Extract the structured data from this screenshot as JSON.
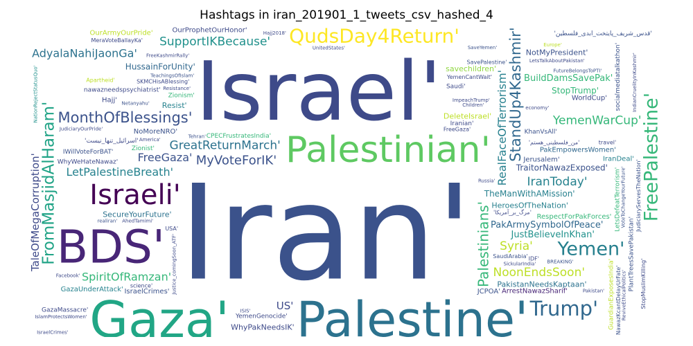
{
  "chart_data": {
    "type": "wordcloud",
    "title": "Hashtags in iran_201901_1_tweets_csv_hashed_4",
    "colormap": "viridis",
    "background": "#ffffff",
    "words": [
      {
        "text": "Israel'",
        "weight": 100,
        "color": "#3e4a89",
        "orient": "h"
      },
      {
        "text": "Iran'",
        "weight": 98,
        "color": "#3b528b",
        "orient": "h"
      },
      {
        "text": "Palestine'",
        "weight": 62,
        "color": "#2c728e",
        "orient": "h"
      },
      {
        "text": "Gaza'",
        "weight": 60,
        "color": "#21a685",
        "orient": "h"
      },
      {
        "text": "BDS'",
        "weight": 52,
        "color": "#482677",
        "orient": "h"
      },
      {
        "text": "Palestinian'",
        "weight": 45,
        "color": "#5ec962",
        "orient": "h"
      },
      {
        "text": "Israeli'",
        "weight": 33,
        "color": "#440154",
        "orient": "h"
      },
      {
        "text": "QudsDay4Return'",
        "weight": 28,
        "color": "#fde725",
        "orient": "h"
      },
      {
        "text": "FreePalestine'",
        "weight": 27,
        "color": "#35b779",
        "orient": "v"
      },
      {
        "text": "Trump'",
        "weight": 24,
        "color": "#31688e",
        "orient": "h"
      },
      {
        "text": "Yemen'",
        "weight": 22,
        "color": "#27808e",
        "orient": "h"
      },
      {
        "text": "FromMasjidAlHaram'",
        "weight": 18,
        "color": "#20a386",
        "orient": "v"
      },
      {
        "text": "MonthOfBlessings'",
        "weight": 16,
        "color": "#3b528b",
        "orient": "h"
      },
      {
        "text": "StandUp4Kashmir'",
        "weight": 16,
        "color": "#31688e",
        "orient": "v"
      },
      {
        "text": "Palestinians'",
        "weight": 15,
        "color": "#35b779",
        "orient": "v"
      },
      {
        "text": "GreatReturnMarch'",
        "weight": 12,
        "color": "#2c728e",
        "orient": "h"
      },
      {
        "text": "SupportIKBecause'",
        "weight": 12,
        "color": "#21918c",
        "orient": "h"
      },
      {
        "text": "NoonEndsSoon'",
        "weight": 12,
        "color": "#bddf26",
        "orient": "h"
      },
      {
        "text": "MyVoteForIK'",
        "weight": 13,
        "color": "#3b528b",
        "orient": "h"
      },
      {
        "text": "AdyalaNahiJaonGa'",
        "weight": 11,
        "color": "#2c728e",
        "orient": "h"
      },
      {
        "text": "SpiritOfRamzan'",
        "weight": 11,
        "color": "#35b779",
        "orient": "h"
      },
      {
        "text": "LetPalestineBreath'",
        "weight": 11,
        "color": "#26828e",
        "orient": "h"
      },
      {
        "text": "Syria'",
        "weight": 12,
        "color": "#bddf26",
        "orient": "h"
      },
      {
        "text": "IranToday'",
        "weight": 12,
        "color": "#26828e",
        "orient": "h"
      },
      {
        "text": "YemenWarCup'",
        "weight": 12,
        "color": "#35b779",
        "orient": "h"
      },
      {
        "text": "FreeGaza'",
        "weight": 11,
        "color": "#3b528b",
        "orient": "h"
      },
      {
        "text": "RealFaceOfTerrorism'",
        "weight": 11,
        "color": "#27808e",
        "orient": "v"
      },
      {
        "text": "TaleOfMegaCorruption'",
        "weight": 10,
        "color": "#3e4a89",
        "orient": "v"
      },
      {
        "text": "PakArmySymbolOfPeace'",
        "weight": 9,
        "color": "#31688e",
        "orient": "h"
      },
      {
        "text": "BuildDamsSavePak'",
        "weight": 9,
        "color": "#35b779",
        "orient": "h"
      },
      {
        "text": "US'",
        "weight": 10,
        "color": "#3e4a89",
        "orient": "h"
      },
      {
        "text": "JustBelieveInKhan'",
        "weight": 9,
        "color": "#21918c",
        "orient": "h"
      },
      {
        "text": "TheManWithAMission'",
        "weight": 8,
        "color": "#27808e",
        "orient": "h"
      },
      {
        "text": "TraitorNawazExposed'",
        "weight": 8,
        "color": "#3b528b",
        "orient": "h"
      },
      {
        "text": "StopTrump'",
        "weight": 8,
        "color": "#35b779",
        "orient": "h"
      },
      {
        "text": "HussainForUnity'",
        "weight": 8,
        "color": "#31688e",
        "orient": "h"
      },
      {
        "text": "WhyPakNeedsIK'",
        "weight": 7,
        "color": "#3e4a89",
        "orient": "h"
      },
      {
        "text": "SecureYourFuture'",
        "weight": 7,
        "color": "#2c728e",
        "orient": "h"
      },
      {
        "text": "Resist'",
        "weight": 7,
        "color": "#26828e",
        "orient": "h"
      },
      {
        "text": "savechildren'",
        "weight": 7,
        "color": "#90d743",
        "orient": "h"
      },
      {
        "text": "ArrestNawazSharif'",
        "weight": 6,
        "color": "#482677",
        "orient": "h"
      },
      {
        "text": "PakistanNeedsKaptaan'",
        "weight": 7,
        "color": "#2c728e",
        "orient": "h"
      },
      {
        "text": "HeroesOfTheNation'",
        "weight": 7,
        "color": "#27808e",
        "orient": "h"
      },
      {
        "text": "RespectForPakForces'",
        "weight": 6,
        "color": "#35b779",
        "orient": "h"
      },
      {
        "text": "IranDeal'",
        "weight": 6,
        "color": "#26828e",
        "orient": "h"
      },
      {
        "text": "Hajj'",
        "weight": 6,
        "color": "#3e4a89",
        "orient": "h"
      },
      {
        "text": "IsraelCrimes'",
        "weight": 6,
        "color": "#3b528b",
        "orient": "h"
      },
      {
        "text": "GazaUnderAttack'",
        "weight": 6,
        "color": "#26828e",
        "orient": "h"
      },
      {
        "text": "NoMoreNRO'",
        "weight": 6,
        "color": "#3b528b",
        "orient": "h"
      },
      {
        "text": "OurProphetOurHonor'",
        "weight": 6,
        "color": "#3e4a89",
        "orient": "h"
      },
      {
        "text": "DeleteIsrael'",
        "weight": 7,
        "color": "#bddf26",
        "orient": "h"
      },
      {
        "text": "NotMyPresident'",
        "weight": 7,
        "color": "#3b528b",
        "orient": "h"
      },
      {
        "text": "OurArmyOurPride'",
        "weight": 6,
        "color": "#bddf26",
        "orient": "h"
      },
      {
        "text": "JCPOA'",
        "weight": 6,
        "color": "#3b528b",
        "orient": "h"
      },
      {
        "text": "PakEmpowersWomen'",
        "weight": 6,
        "color": "#31688e",
        "orient": "h"
      },
      {
        "text": "Jerusalem'",
        "weight": 6,
        "color": "#3b528b",
        "orient": "h"
      },
      {
        "text": "GazaMassacre'",
        "weight": 5,
        "color": "#3e4a89",
        "orient": "h"
      },
      {
        "text": "WhyWeHateNawaz'",
        "weight": 5,
        "color": "#3e4a89",
        "orient": "h"
      },
      {
        "text": "Zionist'",
        "weight": 5,
        "color": "#35b779",
        "orient": "h"
      },
      {
        "text": "Zionism'",
        "weight": 5,
        "color": "#35b779",
        "orient": "h"
      },
      {
        "text": "YemenGenocide'",
        "weight": 5,
        "color": "#3e4a89",
        "orient": "h"
      },
      {
        "text": "IWillVoteForBAT'",
        "weight": 5,
        "color": "#3b528b",
        "orient": "h"
      },
      {
        "text": "CPECFrustratesIndia'",
        "weight": 5,
        "color": "#35b779",
        "orient": "h"
      },
      {
        "text": "WorldCup'",
        "weight": 6,
        "color": "#3e4a89",
        "orient": "h"
      },
      {
        "text": "KhanVsAll'",
        "weight": 5,
        "color": "#3b528b",
        "orient": "h"
      },
      {
        "text": "Saudi'",
        "weight": 5,
        "color": "#3e4a89",
        "orient": "h"
      },
      {
        "text": "SaudiArabia'",
        "weight": 4,
        "color": "#3b528b",
        "orient": "h"
      },
      {
        "text": "Iranian'",
        "weight": 5,
        "color": "#3e4a89",
        "orient": "h"
      },
      {
        "text": "YemenCantWait'",
        "weight": 4,
        "color": "#3e4a89",
        "orient": "h"
      },
      {
        "text": "FreeGaza'",
        "weight": 4,
        "color": "#3e4a89",
        "orient": "h"
      },
      {
        "text": "SavePalestine'",
        "weight": 4,
        "color": "#3b528b",
        "orient": "h"
      },
      {
        "text": "IDF'",
        "weight": 4,
        "color": "#3e4a89",
        "orient": "h"
      },
      {
        "text": "PlantTreesSavePakistan'",
        "weight": 5,
        "color": "#3b528b",
        "orient": "v"
      },
      {
        "text": "LetsDefeatTerrorism'",
        "weight": 5,
        "color": "#35b779",
        "orient": "v"
      },
      {
        "text": "socialmediatalkathon'",
        "weight": 5,
        "color": "#3b528b",
        "orient": "v"
      },
      {
        "text": "JudiciaryServesTheNation'",
        "weight": 4,
        "color": "#3b528b",
        "orient": "v"
      },
      {
        "text": "GuardianExposesIndia'",
        "weight": 5,
        "color": "#bddf26",
        "orient": "v"
      },
      {
        "text": "nawazneedspsychiatrist'",
        "weight": 5,
        "color": "#3e4a89",
        "orient": "h"
      },
      {
        "text": "travel'",
        "weight": 4,
        "color": "#3e4a89",
        "orient": "h"
      },
      {
        "text": "Apartheid'",
        "weight": 4,
        "color": "#bddf26",
        "orient": "h"
      },
      {
        "text": "FutureBelongsToPTI'",
        "weight": 3,
        "color": "#3b528b",
        "orient": "h"
      },
      {
        "text": "science'",
        "weight": 4,
        "color": "#3e4a89",
        "orient": "h"
      },
      {
        "text": "USA'",
        "weight": 4,
        "color": "#3e4a89",
        "orient": "h"
      },
      {
        "text": "Pakistan'",
        "weight": 3,
        "color": "#3e4a89",
        "orient": "h"
      },
      {
        "text": "realiran'",
        "weight": 3,
        "color": "#3b528b",
        "orient": "h"
      },
      {
        "text": "America'",
        "weight": 3,
        "color": "#3e4a89",
        "orient": "h"
      },
      {
        "text": "TeachingsOfIslam'",
        "weight": 3,
        "color": "#3b528b",
        "orient": "h"
      },
      {
        "text": "JudiciaryOurPride'",
        "weight": 3,
        "color": "#3e4a89",
        "orient": "h"
      },
      {
        "text": "Netanyahu'",
        "weight": 3,
        "color": "#3b528b",
        "orient": "h"
      },
      {
        "text": "Tehran'",
        "weight": 3,
        "color": "#3b528b",
        "orient": "h"
      },
      {
        "text": "UnitedStates'",
        "weight": 3,
        "color": "#3e4a89",
        "orient": "h"
      },
      {
        "text": "ISIS'",
        "weight": 3,
        "color": "#3e4a89",
        "orient": "h"
      },
      {
        "text": "Russia'",
        "weight": 3,
        "color": "#3e4a89",
        "orient": "h"
      },
      {
        "text": "Children'",
        "weight": 3,
        "color": "#3e4a89",
        "orient": "h"
      },
      {
        "text": "economy'",
        "weight": 3,
        "color": "#3e4a89",
        "orient": "h"
      },
      {
        "text": "Europe'",
        "weight": 3,
        "color": "#bddf26",
        "orient": "h"
      },
      {
        "text": "Facebook'",
        "weight": 3,
        "color": "#3e4a89",
        "orient": "h"
      },
      {
        "text": "AhedTamimi'",
        "weight": 3,
        "color": "#3e4a89",
        "orient": "h"
      },
      {
        "text": "Resistance'",
        "weight": 3,
        "color": "#3e4a89",
        "orient": "h"
      },
      {
        "text": "Hajj2018'",
        "weight": 3,
        "color": "#3e4a89",
        "orient": "h"
      },
      {
        "text": "IsraelCrimes'",
        "weight": 3,
        "color": "#3e4a89",
        "orient": "h"
      },
      {
        "text": "SKMCHisABlessing'",
        "weight": 4,
        "color": "#3e4a89",
        "orient": "h"
      },
      {
        "text": "MeraVoteBallayKa'",
        "weight": 4,
        "color": "#3e4a89",
        "orient": "h"
      },
      {
        "text": "BREAKING'",
        "weight": 3,
        "color": "#3b528b",
        "orient": "h"
      },
      {
        "text": "ImpeachTrump'",
        "weight": 3,
        "color": "#3e4a89",
        "orient": "h"
      },
      {
        "text": "LetsTalkAboutPakistan'",
        "weight": 3,
        "color": "#3e4a89",
        "orient": "h"
      },
      {
        "text": "SaveYemen'",
        "weight": 3,
        "color": "#3b528b",
        "orient": "h"
      },
      {
        "text": "IslamProtectsWomen'",
        "weight": 2,
        "color": "#3e4a89",
        "orient": "h"
      },
      {
        "text": "SickularIndia'",
        "weight": 3,
        "color": "#3e4a89",
        "orient": "h"
      },
      {
        "text": "FreeKashmirRally'",
        "weight": 2,
        "color": "#3e4a89",
        "orient": "h"
      },
      {
        "text": "KaptaanUnitesPakistan'",
        "weight": 2,
        "color": "#3b528b",
        "orient": "h"
      },
      {
        "text": "NawazKcantDelayUrFate'",
        "weight": 4,
        "color": "#3b528b",
        "orient": "v"
      },
      {
        "text": "VoteToChangeYourFuture'",
        "weight": 3,
        "color": "#3b528b",
        "orient": "v"
      },
      {
        "text": "StopMuslimKilling'",
        "weight": 4,
        "color": "#3e4a89",
        "orient": "v"
      },
      {
        "text": "IndianCruelityInKashmir'",
        "weight": 3,
        "color": "#3e4a89",
        "orient": "v"
      },
      {
        "text": "NationRejectStatusQuo'",
        "weight": 3,
        "color": "#21918c",
        "orient": "v"
      },
      {
        "text": "ReviveEthicalPolitics'",
        "weight": 3,
        "color": "#3e4a89",
        "orient": "v"
      },
      {
        "text": "Justice_comingSoon_ATF'",
        "weight": 3,
        "color": "#3e4a89",
        "orient": "v"
      },
      {
        "text": "'اسرائیل_تنها_نیست'",
        "weight": 5,
        "color": "#3e4a89",
        "orient": "h"
      },
      {
        "text": "'فلسطین_آزاد_خواهد_شد_انشاالله'",
        "weight": 5,
        "color": "#2c728e",
        "orient": "h"
      },
      {
        "text": "'قدس_شریف_پایتخت_ابدی_فلسطین'",
        "weight": 5,
        "color": "#3b528b",
        "orient": "h"
      },
      {
        "text": "'مرگ_بر_آمریکا'",
        "weight": 4,
        "color": "#3e4a89",
        "orient": "h"
      },
      {
        "text": "'من_فلسطینی_هستم'",
        "weight": 4,
        "color": "#3e4a89",
        "orient": "h"
      }
    ]
  }
}
